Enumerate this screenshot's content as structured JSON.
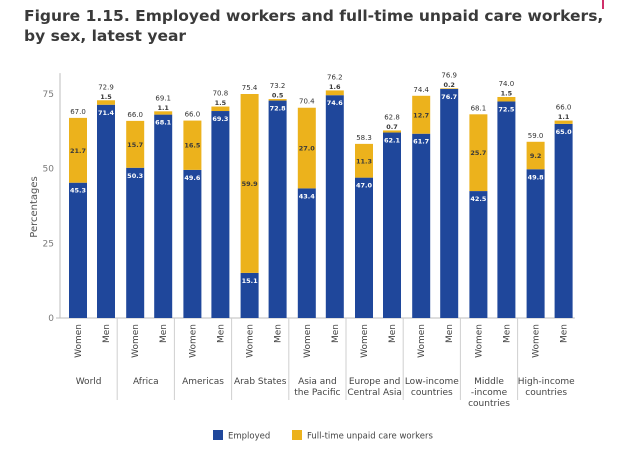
{
  "title": "Figure 1.15. Employed workers and full-time unpaid care workers, by sex, latest year",
  "colors": {
    "employed": "#1f479b",
    "unpaid": "#ecb21c"
  },
  "chart_data": {
    "type": "bar",
    "stacked": true,
    "title": "Figure 1.15. Employed workers and full-time unpaid care workers, by sex, latest year",
    "xlabel": "",
    "ylabel": "Percentages",
    "ylim": [
      0,
      80
    ],
    "yticks": [
      0,
      25,
      50,
      75
    ],
    "grid": false,
    "legend_position": "bottom",
    "groups": [
      {
        "name": "World",
        "lines": [
          "World"
        ]
      },
      {
        "name": "Africa",
        "lines": [
          "Africa"
        ]
      },
      {
        "name": "Americas",
        "lines": [
          "Americas"
        ]
      },
      {
        "name": "Arab States",
        "lines": [
          "Arab States"
        ]
      },
      {
        "name": "Asia and the Pacific",
        "lines": [
          "Asia and",
          "the Pacific"
        ]
      },
      {
        "name": "Europe and Central Asia",
        "lines": [
          "Europe and",
          "Central Asia"
        ]
      },
      {
        "name": "Low-income countries",
        "lines": [
          "Low-income",
          "countries"
        ]
      },
      {
        "name": "Middle-income countries",
        "lines": [
          "Middle",
          "-income",
          "countries"
        ]
      },
      {
        "name": "High-income countries",
        "lines": [
          "High-income",
          "countries"
        ]
      }
    ],
    "sexes": [
      "Women",
      "Men"
    ],
    "series": [
      {
        "name": "Employed",
        "values": [
          [
            45.3,
            71.4
          ],
          [
            50.3,
            68.1
          ],
          [
            49.6,
            69.3
          ],
          [
            15.1,
            72.8
          ],
          [
            43.4,
            74.6
          ],
          [
            47.0,
            62.1
          ],
          [
            61.7,
            76.7
          ],
          [
            42.5,
            72.5
          ],
          [
            49.8,
            65.0
          ]
        ]
      },
      {
        "name": "Full-time unpaid care workers",
        "values": [
          [
            21.7,
            1.5
          ],
          [
            15.7,
            1.1
          ],
          [
            16.5,
            1.5
          ],
          [
            59.9,
            0.5
          ],
          [
            27.0,
            1.6
          ],
          [
            11.3,
            0.7
          ],
          [
            12.7,
            0.2
          ],
          [
            25.7,
            1.5
          ],
          [
            9.2,
            1.1
          ]
        ]
      }
    ],
    "totals": [
      [
        67.0,
        72.9
      ],
      [
        66.0,
        69.1
      ],
      [
        66.0,
        70.8
      ],
      [
        75.4,
        73.2
      ],
      [
        70.4,
        76.2
      ],
      [
        58.3,
        62.8
      ],
      [
        74.4,
        76.9
      ],
      [
        68.1,
        74.0
      ],
      [
        59.0,
        66.0
      ]
    ]
  },
  "legend": [
    {
      "label": "Employed",
      "key": "employed"
    },
    {
      "label": "Full-time unpaid care workers",
      "key": "unpaid"
    }
  ]
}
